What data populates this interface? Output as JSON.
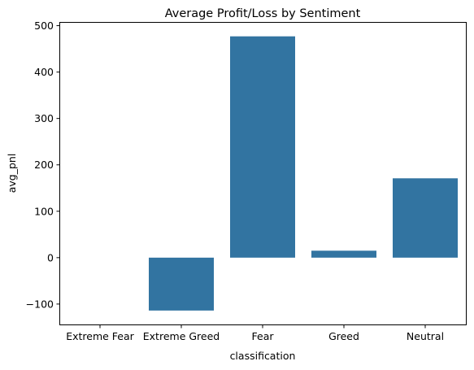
{
  "chart_data": {
    "type": "bar",
    "title": "Average Profit/Loss by Sentiment",
    "xlabel": "classification",
    "ylabel": "avg_pnl",
    "categories": [
      "Extreme Fear",
      "Extreme Greed",
      "Fear",
      "Greed",
      "Neutral"
    ],
    "values": [
      0,
      -114,
      477,
      15,
      171
    ],
    "ylim": [
      -144,
      508
    ],
    "yticks": [
      -100,
      0,
      100,
      200,
      300,
      400,
      500
    ],
    "ytick_labels": [
      "−100",
      "0",
      "100",
      "200",
      "300",
      "400",
      "500"
    ],
    "bar_color": "#3274a1",
    "grid": false,
    "legend": "none"
  }
}
